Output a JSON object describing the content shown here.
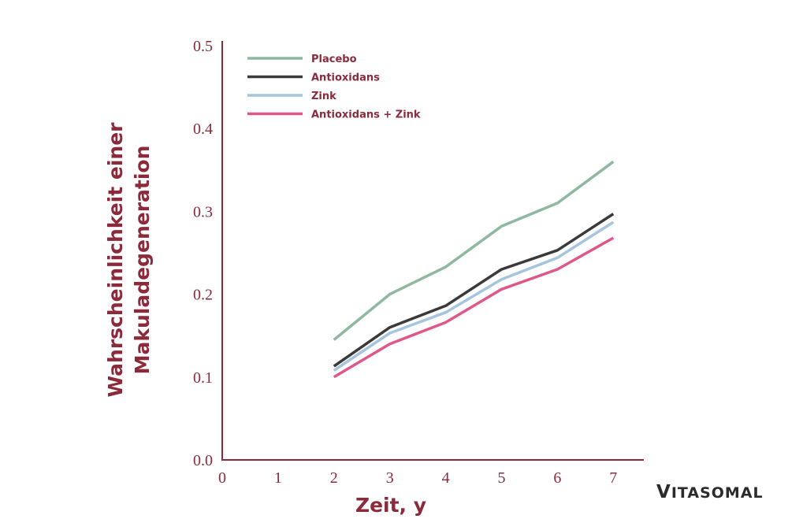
{
  "chart_data": {
    "type": "line",
    "title": "",
    "xlabel": "Zeit, y",
    "ylabel_lines": [
      "Wahrscheinlichkeit einer",
      "Makuladegeneration"
    ],
    "x_ticks": [
      "0",
      "1",
      "2",
      "3",
      "4",
      "5",
      "6",
      "7"
    ],
    "y_ticks": [
      "0.0",
      "0.1",
      "0.2",
      "0.3",
      "0.4",
      "0.5"
    ],
    "xlim": [
      0,
      7.6
    ],
    "ylim": [
      0,
      0.5
    ],
    "x": [
      2,
      3,
      4,
      5,
      6,
      7
    ],
    "legend_position": "top-left",
    "series": [
      {
        "name": "Placebo",
        "color": "#8fb8a0",
        "values": [
          0.145,
          0.2,
          0.233,
          0.282,
          0.31,
          0.36
        ]
      },
      {
        "name": "Antioxidans",
        "color": "#3a3a3a",
        "values": [
          0.113,
          0.16,
          0.186,
          0.23,
          0.253,
          0.297
        ]
      },
      {
        "name": "Zink",
        "color": "#a5c4dd",
        "values": [
          0.108,
          0.153,
          0.178,
          0.218,
          0.244,
          0.287
        ]
      },
      {
        "name": "Antioxidans + Zink",
        "color": "#e0578a",
        "values": [
          0.1,
          0.14,
          0.166,
          0.206,
          0.23,
          0.268
        ]
      }
    ]
  },
  "colors": {
    "axis": "#8b2a3a",
    "text": "#8b2a3a"
  },
  "brand": {
    "first": "V",
    "rest": "ITASOMAL"
  }
}
